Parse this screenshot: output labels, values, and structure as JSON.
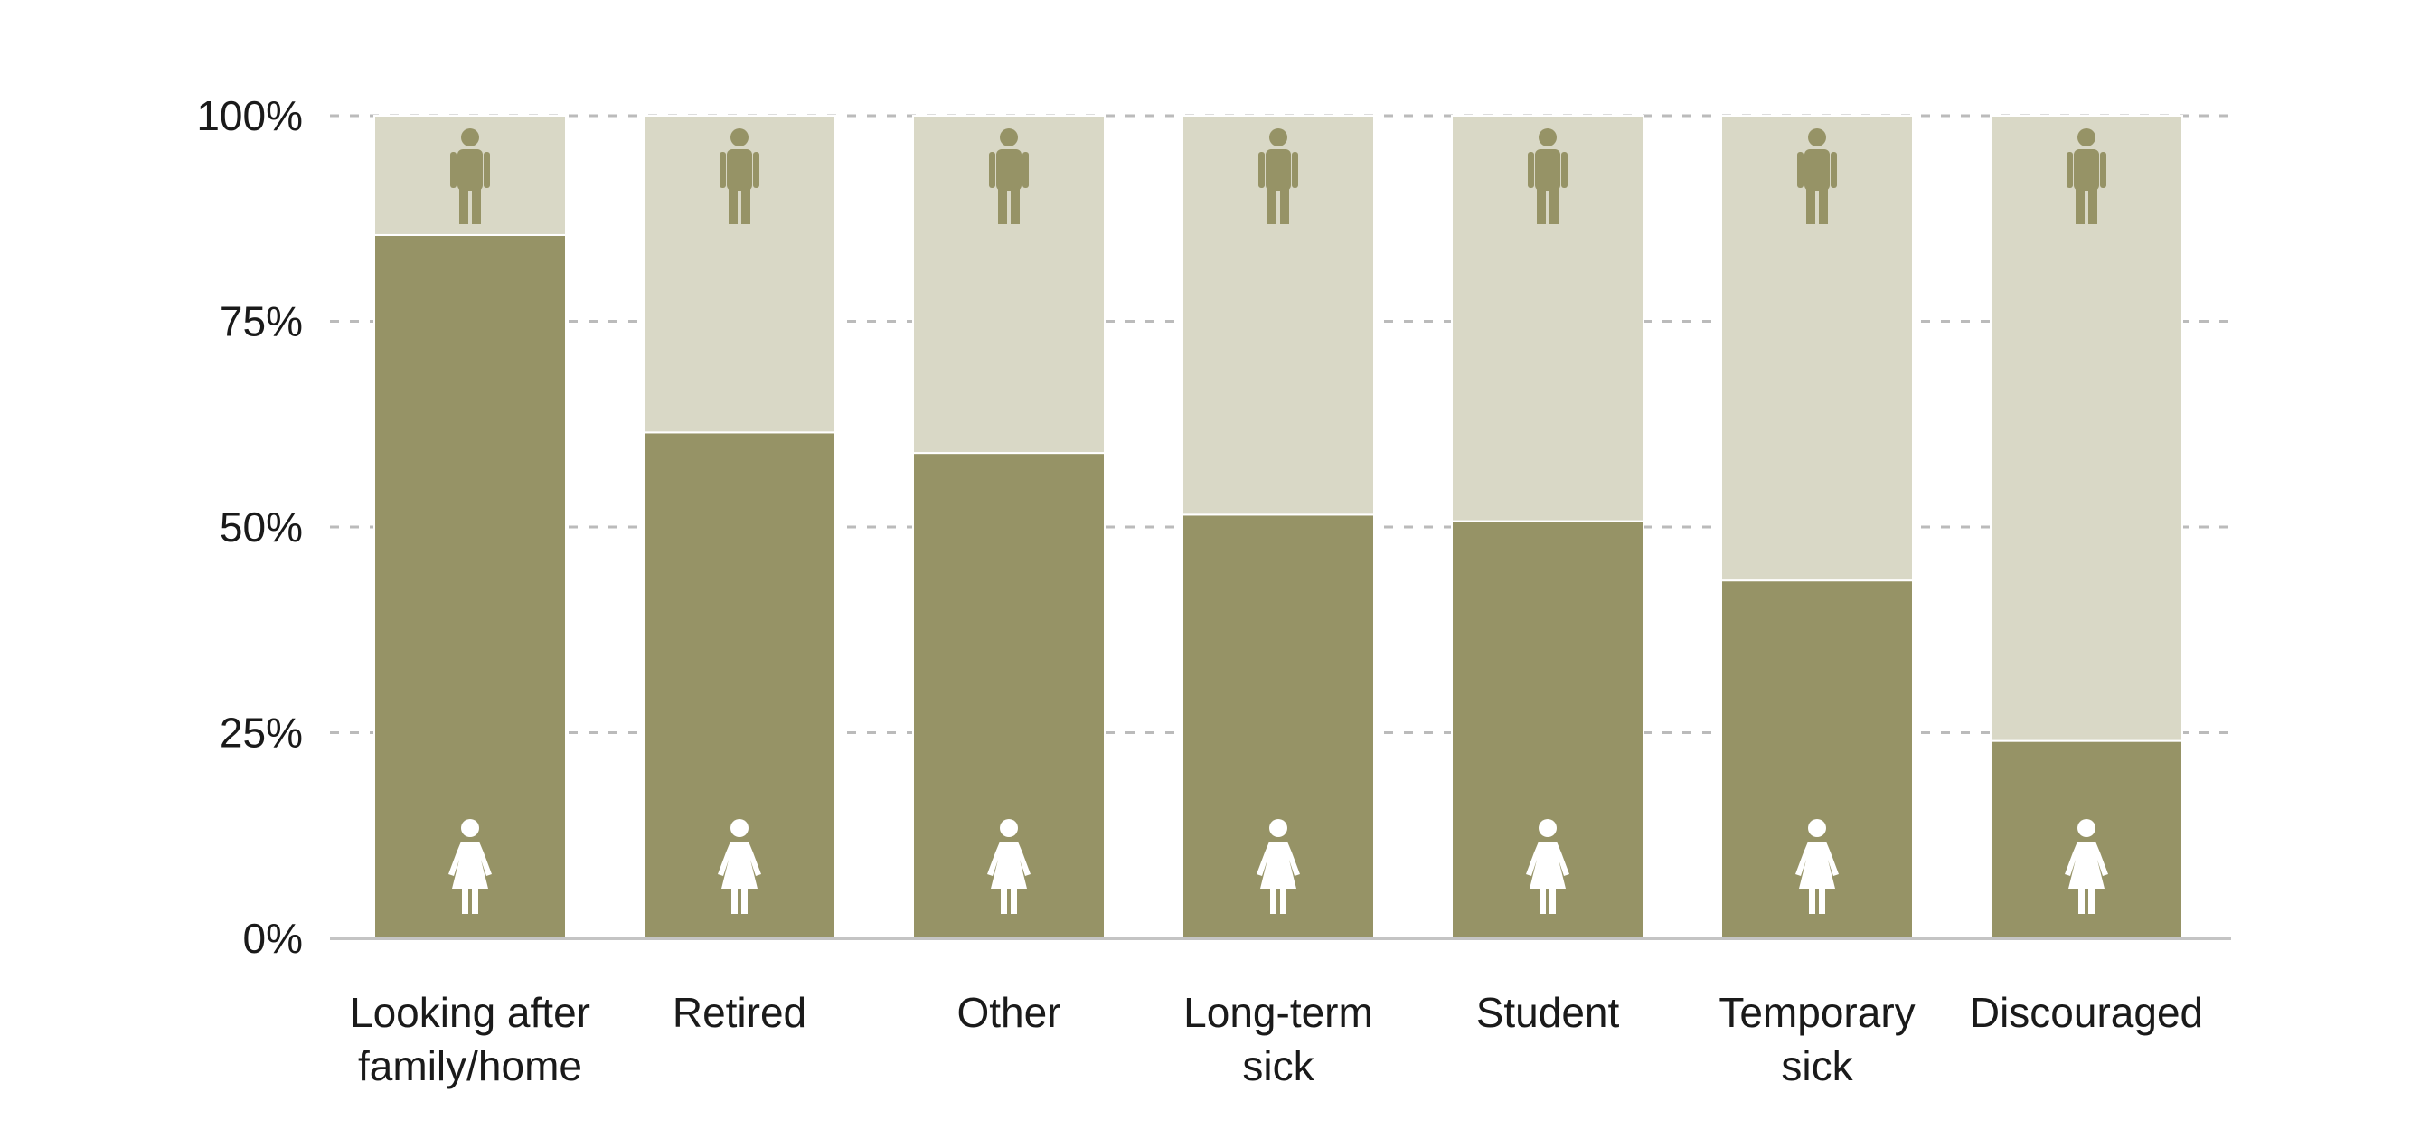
{
  "chart_data": {
    "type": "bar",
    "stacked": true,
    "categories": [
      [
        "Looking after",
        "family/home"
      ],
      [
        "Retired"
      ],
      [
        "Other"
      ],
      [
        "Long-term",
        "sick"
      ],
      [
        "Student"
      ],
      [
        "Temporary",
        "sick"
      ],
      [
        "Discouraged"
      ]
    ],
    "series": [
      {
        "icon": "female-icon",
        "color": "#969366",
        "values": [
          85.5,
          61.5,
          59,
          51.5,
          50.7,
          43.5,
          24
        ]
      },
      {
        "icon": "male-icon",
        "color": "#d9d8c6",
        "values": [
          14.5,
          38.5,
          41,
          48.5,
          49.3,
          56.5,
          76
        ]
      }
    ],
    "y_tick_labels": [
      "0%",
      "25%",
      "50%",
      "75%",
      "100%"
    ],
    "y_ticks": [
      0,
      25,
      50,
      75,
      100
    ],
    "ylim": [
      0,
      100
    ],
    "grid": "horizontal-dashed",
    "colors": {
      "female_icon": "#ffffff",
      "male_icon": "#969366",
      "grid": "#bbbbbb",
      "axis": "#c4c4c4"
    }
  }
}
